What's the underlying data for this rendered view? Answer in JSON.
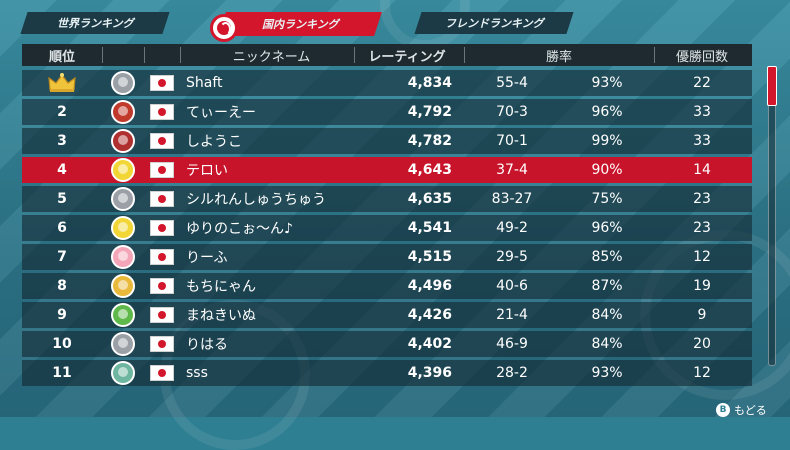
{
  "tabs": [
    {
      "label": "世界ランキング",
      "active": false
    },
    {
      "label": "国内ランキング",
      "active": true
    },
    {
      "label": "フレンドランキング",
      "active": false
    }
  ],
  "header": {
    "rank": "順位",
    "nickname": "ニックネーム",
    "rating": "レーティング",
    "winloss": "勝率",
    "wins": "優勝回数"
  },
  "rows": [
    {
      "rank": "",
      "crown": true,
      "avatar": "#9aa0a6",
      "name": "Shaft",
      "rating": "4,834",
      "record": "55-4",
      "pct": "93%",
      "titles": "22",
      "highlight": false
    },
    {
      "rank": "2",
      "avatar": "#c0392b",
      "name": "てぃーえー",
      "rating": "4,792",
      "record": "70-3",
      "pct": "96%",
      "titles": "33",
      "highlight": false
    },
    {
      "rank": "3",
      "avatar": "#b03030",
      "name": "しようこ",
      "rating": "4,782",
      "record": "70-1",
      "pct": "99%",
      "titles": "33",
      "highlight": false
    },
    {
      "rank": "4",
      "avatar": "#f2d636",
      "name": "テロい",
      "rating": "4,643",
      "record": "37-4",
      "pct": "90%",
      "titles": "14",
      "highlight": true
    },
    {
      "rank": "5",
      "avatar": "#9aa0a6",
      "name": "シルれんしゅうちゅう",
      "rating": "4,635",
      "record": "83-27",
      "pct": "75%",
      "titles": "23",
      "highlight": false
    },
    {
      "rank": "6",
      "avatar": "#f2d636",
      "name": "ゆりのこぉ〜ん♪",
      "rating": "4,541",
      "record": "49-2",
      "pct": "96%",
      "titles": "23",
      "highlight": false
    },
    {
      "rank": "7",
      "avatar": "#f4a6b8",
      "name": "りーふ",
      "rating": "4,515",
      "record": "29-5",
      "pct": "85%",
      "titles": "12",
      "highlight": false
    },
    {
      "rank": "8",
      "avatar": "#e8b93a",
      "name": "もちにゃん",
      "rating": "4,496",
      "record": "40-6",
      "pct": "87%",
      "titles": "19",
      "highlight": false
    },
    {
      "rank": "9",
      "avatar": "#5fb84a",
      "name": "まねきいぬ",
      "rating": "4,426",
      "record": "21-4",
      "pct": "84%",
      "titles": "9",
      "highlight": false
    },
    {
      "rank": "10",
      "avatar": "#9aa0a6",
      "name": "りはる",
      "rating": "4,402",
      "record": "46-9",
      "pct": "84%",
      "titles": "20",
      "highlight": false
    },
    {
      "rank": "11",
      "avatar": "#6fb6a0",
      "name": "sss",
      "rating": "4,396",
      "record": "28-2",
      "pct": "93%",
      "titles": "12",
      "highlight": false
    }
  ],
  "footer": {
    "button": "B",
    "label": "もどる"
  },
  "colors": {
    "accent": "#d3162b",
    "row": "#1c2f38",
    "header": "#1e2a30"
  }
}
